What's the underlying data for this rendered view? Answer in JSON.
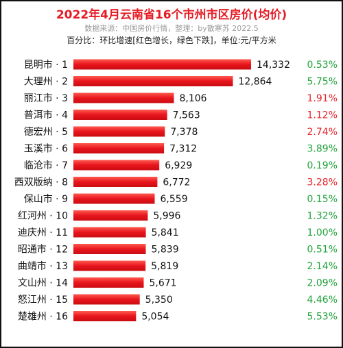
{
  "header": {
    "title": "2022年4月云南省16个市州市区房价(均价)",
    "subtitle": "数据来源：中国房价行情，整理：by散寒苏  2022.5",
    "note": "百分比：环比增速[红色增长，绿色下跌]，单位:元/平方米"
  },
  "colors": {
    "title": "#e51b24",
    "bar": "#e8151d",
    "increase": "#e3262c",
    "decrease": "#1fa33a"
  },
  "chart_data": {
    "type": "bar",
    "orientation": "horizontal",
    "categories": [
      "昆明市 · 1",
      "大理州 · 2",
      "丽江市 · 3",
      "普洱市 · 4",
      "德宏州 · 5",
      "玉溪市 · 6",
      "临沧市 · 7",
      "西双版纳 · 8",
      "保山市 · 9",
      "红河州 · 10",
      "迪庆州 · 11",
      "昭通市 · 12",
      "曲靖市 · 13",
      "文山州 · 14",
      "怒江州 · 15",
      "楚雄州 · 16"
    ],
    "values": [
      14332,
      12864,
      8106,
      7563,
      7378,
      7312,
      6929,
      6772,
      6559,
      5996,
      5841,
      5839,
      5819,
      5671,
      5350,
      5054
    ],
    "value_labels": [
      "14,332",
      "12,864",
      "8,106",
      "7,563",
      "7,378",
      "7,312",
      "6,929",
      "6,772",
      "6,559",
      "5,996",
      "5,841",
      "5,839",
      "5,819",
      "5,671",
      "5,350",
      "5,054"
    ],
    "change_labels": [
      "0.53%",
      "5.75%",
      "1.91%",
      "1.12%",
      "2.74%",
      "3.89%",
      "0.19%",
      "3.28%",
      "0.15%",
      "1.32%",
      "1.00%",
      "0.51%",
      "2.14%",
      "2.09%",
      "4.46%",
      "5.53%"
    ],
    "change_direction": [
      "down",
      "down",
      "up",
      "up",
      "up",
      "down",
      "down",
      "up",
      "down",
      "down",
      "down",
      "down",
      "down",
      "down",
      "down",
      "down"
    ],
    "xlim": [
      0,
      14332
    ],
    "grid": false,
    "legend": "none"
  }
}
